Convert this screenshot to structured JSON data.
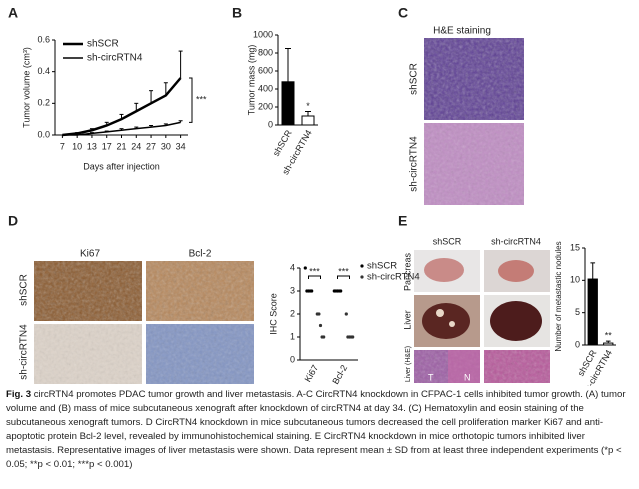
{
  "figure": {
    "panels": [
      "A",
      "B",
      "C",
      "D",
      "E"
    ],
    "c": {
      "title": "H&E staining",
      "rows": [
        "shSCR",
        "sh-circRTN4"
      ]
    },
    "d": {
      "columns": [
        "Ki67",
        "Bcl-2"
      ],
      "rows": [
        "shSCR",
        "sh-circRTN4"
      ]
    },
    "e": {
      "columns": [
        "shSCR",
        "sh-circRTN4"
      ],
      "rows": [
        "Pancreas",
        "Liver",
        "Liver (H&E)"
      ],
      "marks": [
        "T",
        "N"
      ]
    }
  },
  "caption": {
    "label": "Fig. 3",
    "text": "circRTN4 promotes PDAC tumor growth and liver metastasis. A-C CircRTN4 knockdown in CFPAC-1 cells inhibited tumor growth. (A) tumor volume and (B) mass of mice subcutaneous xenograft after knockdown of circRTN4 at day 34. (C) Hematoxylin and eosin staining of the subcutaneous xenograft tumors. D CircRTN4 knockdown in mice subcutaneous tumors decreased the cell proliferation marker Ki67 and anti-apoptotic protein Bcl-2 level, revealed by immunohistochemical staining. E CircRTN4 knockdown in mice orthotopic tumors inhibited liver metastasis. Representative images of liver metastasis were shown. Data represent mean ± SD from at least three independent experiments (*p < 0.05; **p < 0.01; ***p < 0.001)"
  },
  "chart_data": [
    {
      "type": "line",
      "ylabel": "Tumor volume (cm³)",
      "xlabel": "Days after injection",
      "categories": [
        7,
        10,
        13,
        17,
        21,
        24,
        27,
        30,
        34
      ],
      "series": [
        {
          "name": "shSCR",
          "color": "#000000",
          "linewidth": 2.5,
          "values": [
            0.0,
            0.01,
            0.03,
            0.06,
            0.1,
            0.15,
            0.2,
            0.25,
            0.36
          ],
          "errors": [
            0,
            0.005,
            0.01,
            0.02,
            0.03,
            0.05,
            0.08,
            0.08,
            0.17
          ]
        },
        {
          "name": "sh-circRTN4",
          "color": "#000000",
          "linewidth": 1.5,
          "values": [
            0.0,
            0.0,
            0.01,
            0.02,
            0.03,
            0.04,
            0.05,
            0.06,
            0.08
          ],
          "errors": [
            0,
            0,
            0.005,
            0.005,
            0.01,
            0.01,
            0.01,
            0.01,
            0.01
          ]
        }
      ],
      "ylim": [
        0,
        0.6
      ],
      "yticks": [
        {
          "value": 0,
          "label": "0.0"
        },
        0.2,
        0.4,
        0.6
      ],
      "annotation": "***"
    },
    {
      "type": "bar",
      "ylabel": "Tumor mass (mg)",
      "categories": [
        "shSCR",
        "sh-circRTN4"
      ],
      "values": [
        480,
        100
      ],
      "errors": [
        370,
        50
      ],
      "colors": [
        "#000000",
        "#ffffff"
      ],
      "ylim": [
        0,
        1000
      ],
      "yticks": [
        0,
        200,
        400,
        600,
        800,
        1000
      ],
      "annotation": "*"
    },
    {
      "type": "dot",
      "ylabel": "IHC Score",
      "categories": [
        "Ki67",
        "Bcl-2"
      ],
      "series": [
        {
          "name": "shSCR",
          "color": "#000000",
          "values": [
            [
              4,
              3,
              3,
              3,
              3
            ],
            [
              3,
              3,
              3,
              3,
              3
            ]
          ]
        },
        {
          "name": "sh-circRTN4",
          "color": "#333333",
          "values": [
            [
              2,
              2,
              1.5,
              1,
              1
            ],
            [
              2,
              1,
              1,
              1,
              1
            ]
          ]
        }
      ],
      "ylim": [
        0,
        4
      ],
      "yticks": [
        0,
        1,
        2,
        3,
        4
      ],
      "annotations": [
        "***",
        "***"
      ]
    },
    {
      "type": "bar",
      "ylabel": "Number of metastastic nodules",
      "categories": [
        "shSCR",
        "sh-circRTN4"
      ],
      "values": [
        10.2,
        0.3
      ],
      "errors": [
        2.5,
        0.3
      ],
      "colors": [
        "#000000",
        "#ffffff"
      ],
      "ylim": [
        0,
        15
      ],
      "yticks": [
        0,
        5,
        10,
        15
      ],
      "annotation": "**"
    }
  ]
}
